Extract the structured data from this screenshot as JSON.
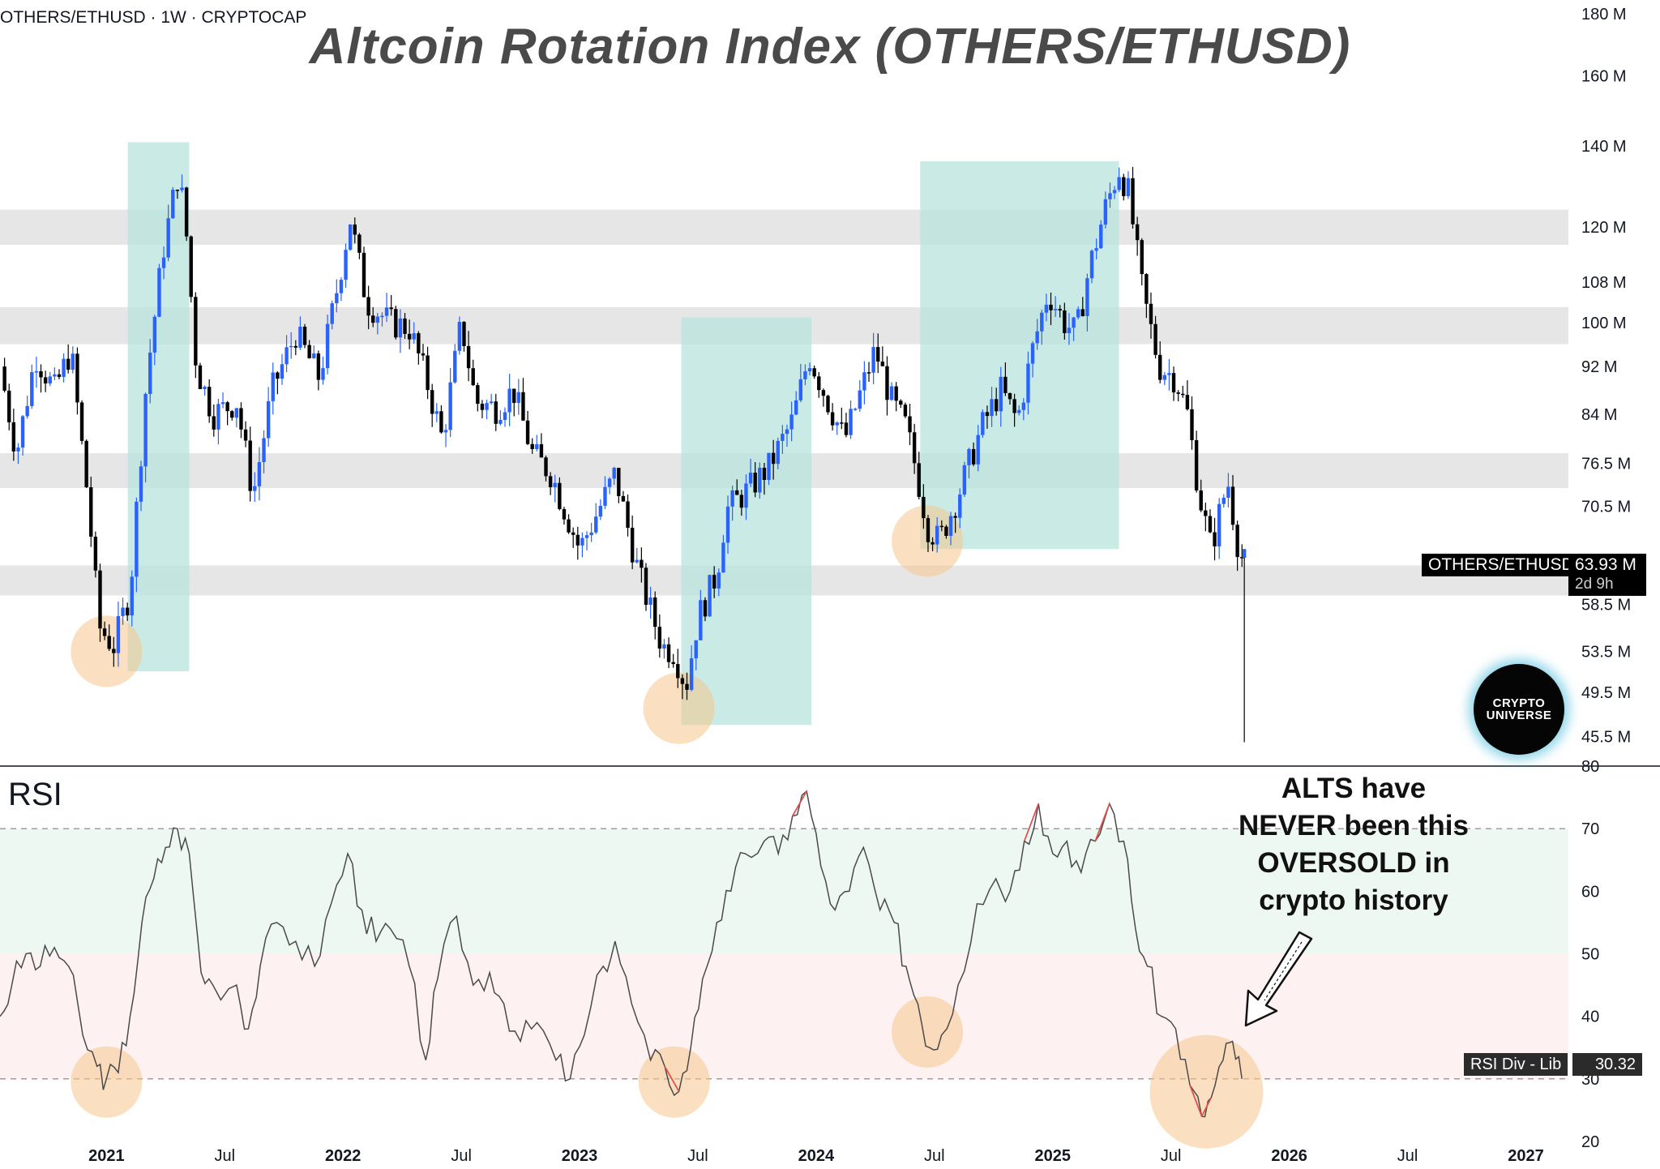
{
  "header": {
    "symbol": "OTHERS/ETHUSD · 1W · CRYPTOCAP",
    "title": "Altcoin Rotation Index (OTHERS/ETHUSD)"
  },
  "annotation": {
    "lines": [
      "ALTS have",
      "NEVER been this",
      "OVERSOLD in",
      "crypto history"
    ]
  },
  "price_tag": {
    "label": "OTHERS/ETHUSD",
    "value": "63.93 M",
    "countdown": "2d 9h"
  },
  "rsi_tag": {
    "label": "RSI Div - Lib",
    "value": "30.32"
  },
  "rsi_panel_label": "RSI",
  "logo": {
    "line1": "CRYPTO",
    "line2": "UNIVERSE"
  },
  "colors": {
    "candle_up": "#2962ff",
    "candle_down": "#000000",
    "rotation_zone": "#b7e3dc",
    "support_band": "#e6e6e6",
    "oversold_circle": "#f6c68d",
    "rsi_line": "#4a4a4a",
    "rsi_overbought": "#e05252"
  },
  "chart_data": [
    {
      "type": "candlestick",
      "title": "Altcoin Rotation Index (OTHERS/ETHUSD)",
      "timeframe": "1W",
      "scale": "log",
      "y_unit": "M",
      "ylim": [
        43,
        182
      ],
      "xlim": [
        "2020-07",
        "2027-03"
      ],
      "y_ticks": [
        {
          "value": 180,
          "label": "180 M"
        },
        {
          "value": 160,
          "label": "160 M"
        },
        {
          "value": 140,
          "label": "140 M"
        },
        {
          "value": 120,
          "label": "120 M"
        },
        {
          "value": 108,
          "label": "108 M"
        },
        {
          "value": 100,
          "label": "100 M"
        },
        {
          "value": 92,
          "label": "92 M"
        },
        {
          "value": 84,
          "label": "84 M"
        },
        {
          "value": 76.5,
          "label": "76.5 M"
        },
        {
          "value": 70.5,
          "label": "70.5 M"
        },
        {
          "value": 58.5,
          "label": "58.5 M"
        },
        {
          "value": 53.5,
          "label": "53.5 M"
        },
        {
          "value": 49.5,
          "label": "49.5 M"
        },
        {
          "value": 45.5,
          "label": "45.5 M"
        }
      ],
      "x_ticks": [
        {
          "t": 2021.0,
          "label": "2021",
          "bold": true
        },
        {
          "t": 2021.5,
          "label": "Jul",
          "bold": false
        },
        {
          "t": 2022.0,
          "label": "2022",
          "bold": true
        },
        {
          "t": 2022.5,
          "label": "Jul",
          "bold": false
        },
        {
          "t": 2023.0,
          "label": "2023",
          "bold": true
        },
        {
          "t": 2023.5,
          "label": "Jul",
          "bold": false
        },
        {
          "t": 2024.0,
          "label": "2024",
          "bold": true
        },
        {
          "t": 2024.5,
          "label": "Jul",
          "bold": false
        },
        {
          "t": 2025.0,
          "label": "2025",
          "bold": true
        },
        {
          "t": 2025.5,
          "label": "Jul",
          "bold": false
        },
        {
          "t": 2026.0,
          "label": "2026",
          "bold": true
        },
        {
          "t": 2026.5,
          "label": "Jul",
          "bold": false
        },
        {
          "t": 2027.0,
          "label": "2027",
          "bold": true
        }
      ],
      "close_path": [
        [
          2020.55,
          92
        ],
        [
          2020.62,
          78
        ],
        [
          2020.7,
          94
        ],
        [
          2020.78,
          88
        ],
        [
          2020.85,
          95
        ],
        [
          2020.92,
          72
        ],
        [
          2020.97,
          56
        ],
        [
          2021.03,
          54
        ],
        [
          2021.1,
          60
        ],
        [
          2021.17,
          90
        ],
        [
          2021.24,
          115
        ],
        [
          2021.3,
          132
        ],
        [
          2021.33,
          124
        ],
        [
          2021.38,
          92
        ],
        [
          2021.45,
          84
        ],
        [
          2021.55,
          86
        ],
        [
          2021.62,
          72
        ],
        [
          2021.7,
          88
        ],
        [
          2021.8,
          98
        ],
        [
          2021.9,
          90
        ],
        [
          2021.98,
          108
        ],
        [
          2022.03,
          122
        ],
        [
          2022.1,
          104
        ],
        [
          2022.2,
          100
        ],
        [
          2022.28,
          99
        ],
        [
          2022.35,
          90
        ],
        [
          2022.42,
          80
        ],
        [
          2022.5,
          100
        ],
        [
          2022.56,
          86
        ],
        [
          2022.65,
          85
        ],
        [
          2022.72,
          88
        ],
        [
          2022.8,
          78
        ],
        [
          2022.88,
          75
        ],
        [
          2022.95,
          69
        ],
        [
          2023.0,
          65
        ],
        [
          2023.08,
          70
        ],
        [
          2023.15,
          75
        ],
        [
          2023.25,
          62
        ],
        [
          2023.35,
          54
        ],
        [
          2023.4,
          53.5
        ],
        [
          2023.45,
          50
        ],
        [
          2023.5,
          57
        ],
        [
          2023.58,
          62
        ],
        [
          2023.62,
          70
        ],
        [
          2023.72,
          73
        ],
        [
          2023.8,
          76
        ],
        [
          2023.9,
          83
        ],
        [
          2023.97,
          94
        ],
        [
          2024.05,
          86
        ],
        [
          2024.12,
          80
        ],
        [
          2024.2,
          89
        ],
        [
          2024.25,
          95
        ],
        [
          2024.32,
          86
        ],
        [
          2024.38,
          82
        ],
        [
          2024.42,
          76
        ],
        [
          2024.47,
          68
        ],
        [
          2024.52,
          66
        ],
        [
          2024.6,
          72
        ],
        [
          2024.7,
          82
        ],
        [
          2024.78,
          88
        ],
        [
          2024.85,
          83
        ],
        [
          2024.92,
          96
        ],
        [
          2024.98,
          106
        ],
        [
          2025.05,
          100
        ],
        [
          2025.1,
          98
        ],
        [
          2025.15,
          110
        ],
        [
          2025.22,
          124
        ],
        [
          2025.28,
          134
        ],
        [
          2025.32,
          128
        ],
        [
          2025.38,
          106
        ],
        [
          2025.45,
          92
        ],
        [
          2025.52,
          90
        ],
        [
          2025.57,
          84
        ],
        [
          2025.62,
          72
        ],
        [
          2025.67,
          65
        ],
        [
          2025.7,
          69
        ],
        [
          2025.74,
          74
        ],
        [
          2025.78,
          66
        ],
        [
          2025.8,
          64
        ]
      ],
      "last_value": 63.93,
      "wick_low": 45,
      "rotation_zones": [
        {
          "from": 2021.09,
          "to": 2021.35,
          "low": 51.5,
          "high": 141
        },
        {
          "from": 2023.43,
          "to": 2023.98,
          "low": 46.5,
          "high": 101
        },
        {
          "from": 2024.44,
          "to": 2025.28,
          "low": 65,
          "high": 136
        }
      ],
      "support_bands": [
        {
          "low": 116,
          "high": 124
        },
        {
          "low": 96,
          "high": 103
        },
        {
          "low": 73,
          "high": 78
        },
        {
          "low": 59.5,
          "high": 63
        }
      ],
      "oversold_circles": [
        {
          "t": 2021.0,
          "value": 53.5
        },
        {
          "t": 2023.42,
          "value": 48
        },
        {
          "t": 2024.47,
          "value": 66
        }
      ]
    },
    {
      "type": "line",
      "title": "RSI",
      "ylim": [
        20,
        80
      ],
      "y_ticks": [
        80,
        70,
        60,
        50,
        40,
        30,
        20
      ],
      "bands": {
        "overbought_zone": [
          50,
          70
        ],
        "oversold_zone": [
          30,
          50
        ],
        "dashed_levels": [
          70,
          30
        ]
      },
      "series": [
        [
          2020.55,
          40
        ],
        [
          2020.6,
          45
        ],
        [
          2020.66,
          50
        ],
        [
          2020.72,
          48
        ],
        [
          2020.78,
          51
        ],
        [
          2020.84,
          48
        ],
        [
          2020.9,
          37
        ],
        [
          2020.96,
          32
        ],
        [
          2021.0,
          30
        ],
        [
          2021.05,
          31
        ],
        [
          2021.1,
          40
        ],
        [
          2021.15,
          55
        ],
        [
          2021.2,
          62
        ],
        [
          2021.25,
          67
        ],
        [
          2021.3,
          70
        ],
        [
          2021.35,
          66
        ],
        [
          2021.4,
          47
        ],
        [
          2021.45,
          45
        ],
        [
          2021.55,
          45
        ],
        [
          2021.6,
          38
        ],
        [
          2021.65,
          48
        ],
        [
          2021.72,
          55
        ],
        [
          2021.8,
          52
        ],
        [
          2021.88,
          48
        ],
        [
          2021.95,
          58
        ],
        [
          2022.02,
          66
        ],
        [
          2022.08,
          57
        ],
        [
          2022.14,
          52
        ],
        [
          2022.2,
          54
        ],
        [
          2022.28,
          48
        ],
        [
          2022.35,
          33
        ],
        [
          2022.4,
          46
        ],
        [
          2022.48,
          56
        ],
        [
          2022.55,
          45
        ],
        [
          2022.62,
          47
        ],
        [
          2022.68,
          42
        ],
        [
          2022.75,
          36
        ],
        [
          2022.82,
          39
        ],
        [
          2022.9,
          33
        ],
        [
          2022.96,
          30
        ],
        [
          2023.02,
          37
        ],
        [
          2023.1,
          48
        ],
        [
          2023.15,
          52
        ],
        [
          2023.22,
          42
        ],
        [
          2023.3,
          33
        ],
        [
          2023.36,
          32
        ],
        [
          2023.42,
          28
        ],
        [
          2023.47,
          35
        ],
        [
          2023.52,
          46
        ],
        [
          2023.58,
          55
        ],
        [
          2023.64,
          60
        ],
        [
          2023.7,
          66
        ],
        [
          2023.78,
          68
        ],
        [
          2023.84,
          66
        ],
        [
          2023.9,
          72
        ],
        [
          2023.96,
          76
        ],
        [
          2024.02,
          64
        ],
        [
          2024.08,
          57
        ],
        [
          2024.14,
          60
        ],
        [
          2024.2,
          67
        ],
        [
          2024.27,
          57
        ],
        [
          2024.33,
          55
        ],
        [
          2024.38,
          48
        ],
        [
          2024.43,
          42
        ],
        [
          2024.48,
          35
        ],
        [
          2024.53,
          37
        ],
        [
          2024.6,
          45
        ],
        [
          2024.68,
          58
        ],
        [
          2024.76,
          62
        ],
        [
          2024.82,
          60
        ],
        [
          2024.88,
          68
        ],
        [
          2024.94,
          74
        ],
        [
          2025.0,
          66
        ],
        [
          2025.06,
          68
        ],
        [
          2025.12,
          63
        ],
        [
          2025.18,
          68
        ],
        [
          2025.24,
          74
        ],
        [
          2025.3,
          68
        ],
        [
          2025.35,
          54
        ],
        [
          2025.4,
          48
        ],
        [
          2025.46,
          40
        ],
        [
          2025.52,
          38
        ],
        [
          2025.58,
          29
        ],
        [
          2025.63,
          24
        ],
        [
          2025.67,
          27
        ],
        [
          2025.72,
          33
        ],
        [
          2025.76,
          36
        ],
        [
          2025.8,
          30
        ]
      ],
      "last_value": 30.32,
      "oversold_circles": [
        {
          "t": 2021.0,
          "value": 29.5
        },
        {
          "t": 2023.4,
          "value": 29.5
        },
        {
          "t": 2024.47,
          "value": 37.5
        },
        {
          "t": 2025.65,
          "value": 29.5
        }
      ]
    }
  ]
}
